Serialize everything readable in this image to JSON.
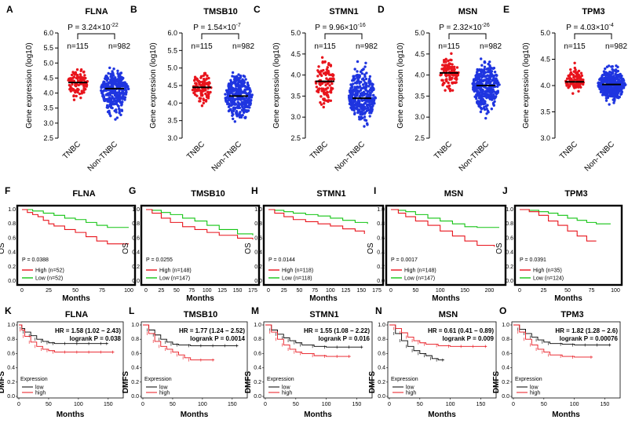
{
  "chart_data": [
    {
      "type": "scatter",
      "panel": "A",
      "title": "FLNA",
      "categories": [
        "TNBC",
        "Non-TNBC"
      ],
      "n_labels": [
        "n=115",
        "n=982"
      ],
      "p_text": "P = 3.24×10",
      "p_exp": "-22",
      "ylabel": "Gene expression (log10)",
      "ylim": [
        2.5,
        6.0
      ],
      "yticks": [
        "2.5",
        "3.0",
        "3.5",
        "4.0",
        "4.5",
        "5.0",
        "5.5",
        "6.0"
      ],
      "group_means": [
        4.35,
        4.15
      ],
      "group_ranges": [
        [
          3.6,
          5.0
        ],
        [
          3.0,
          4.9
        ]
      ],
      "colors": [
        "#e8141c",
        "#1f35e0"
      ]
    },
    {
      "type": "scatter",
      "panel": "B",
      "title": "TMSB10",
      "categories": [
        "TNBC",
        "Non-TNBC"
      ],
      "n_labels": [
        "n=115",
        "n=982"
      ],
      "p_text": "P = 1.54×10",
      "p_exp": "-7",
      "ylabel": "Gene expression (log10)",
      "ylim": [
        3.0,
        6.0
      ],
      "yticks": [
        "3.0",
        "3.5",
        "4.0",
        "4.5",
        "5.0",
        "5.5",
        "6.0"
      ],
      "group_means": [
        4.45,
        4.2
      ],
      "group_ranges": [
        [
          3.8,
          5.05
        ],
        [
          3.2,
          5.0
        ]
      ],
      "colors": [
        "#e8141c",
        "#1f35e0"
      ]
    },
    {
      "type": "scatter",
      "panel": "C",
      "title": "STMN1",
      "categories": [
        "TNBC",
        "Non-TNBC"
      ],
      "n_labels": [
        "n=115",
        "n=982"
      ],
      "p_text": "P = 9.96×10",
      "p_exp": "-16",
      "ylabel": "Gene expression (log10)",
      "ylim": [
        2.5,
        5.0
      ],
      "yticks": [
        "2.5",
        "3.0",
        "3.5",
        "4.0",
        "4.5",
        "5.0"
      ],
      "group_means": [
        3.85,
        3.45
      ],
      "group_ranges": [
        [
          3.1,
          4.55
        ],
        [
          2.7,
          4.5
        ]
      ],
      "colors": [
        "#e8141c",
        "#1f35e0"
      ]
    },
    {
      "type": "scatter",
      "panel": "D",
      "title": "MSN",
      "categories": [
        "TNBC",
        "Non-TNBC"
      ],
      "n_labels": [
        "n=115",
        "n=982"
      ],
      "p_text": "P = 2.32×10",
      "p_exp": "-26",
      "ylabel": "Gene expression (log10)",
      "ylim": [
        2.5,
        5.0
      ],
      "yticks": [
        "2.5",
        "3.0",
        "3.5",
        "4.0",
        "4.5",
        "5.0"
      ],
      "group_means": [
        4.05,
        3.75
      ],
      "group_ranges": [
        [
          3.5,
          4.55
        ],
        [
          2.9,
          4.5
        ]
      ],
      "colors": [
        "#e8141c",
        "#1f35e0"
      ]
    },
    {
      "type": "scatter",
      "panel": "E",
      "title": "TPM3",
      "categories": [
        "TNBC",
        "Non-TNBC"
      ],
      "n_labels": [
        "n=115",
        "n=982"
      ],
      "p_text": "P = 4.03×10",
      "p_exp": "-4",
      "ylabel": "Gene expression (log10)",
      "ylim": [
        3.0,
        5.0
      ],
      "yticks": [
        "3.0",
        "3.5",
        "4.0",
        "4.5",
        "5.0"
      ],
      "group_means": [
        4.07,
        4.02
      ],
      "group_ranges": [
        [
          3.8,
          4.45
        ],
        [
          3.6,
          4.45
        ]
      ],
      "colors": [
        "#e8141c",
        "#1f35e0"
      ]
    },
    {
      "type": "line",
      "panel": "F",
      "title": "FLNA",
      "ylabel": "OS",
      "xlabel": "Months",
      "xlim": [
        0,
        100
      ],
      "xticks": [
        "0",
        "25",
        "50",
        "75",
        "100"
      ],
      "ylim": [
        0,
        1.0
      ],
      "yticks": [
        "0.0",
        "0.2",
        "0.4",
        "0.6",
        "0.8",
        "1.0"
      ],
      "p_label": "P = 0.0388",
      "series": [
        {
          "name": "High (n=52)",
          "color": "#e8141c",
          "x": [
            0,
            5,
            10,
            15,
            20,
            25,
            30,
            40,
            50,
            60,
            70,
            80,
            100
          ],
          "y": [
            1.0,
            0.96,
            0.93,
            0.9,
            0.85,
            0.8,
            0.77,
            0.72,
            0.68,
            0.62,
            0.56,
            0.52,
            0.52
          ]
        },
        {
          "name": "Low (n=52)",
          "color": "#13c413",
          "x": [
            0,
            10,
            20,
            30,
            40,
            50,
            60,
            70,
            80,
            100
          ],
          "y": [
            1.0,
            0.98,
            0.95,
            0.92,
            0.88,
            0.86,
            0.82,
            0.78,
            0.75,
            0.75
          ]
        }
      ]
    },
    {
      "type": "line",
      "panel": "G",
      "title": "TMSB10",
      "ylabel": "OS",
      "xlabel": "Months",
      "xlim": [
        0,
        175
      ],
      "xticks": [
        "0",
        "25",
        "50",
        "75",
        "100",
        "125",
        "150",
        "175"
      ],
      "ylim": [
        0,
        1.0
      ],
      "yticks": [
        "0.0",
        "0.2",
        "0.4",
        "0.6",
        "0.8",
        "1.0"
      ],
      "p_label": "P = 0.0255",
      "series": [
        {
          "name": "High (n=148)",
          "color": "#e8141c",
          "x": [
            0,
            10,
            25,
            40,
            60,
            80,
            100,
            120,
            150,
            175
          ],
          "y": [
            1.0,
            0.95,
            0.88,
            0.82,
            0.76,
            0.72,
            0.68,
            0.64,
            0.6,
            0.58
          ]
        },
        {
          "name": "Low (n=147)",
          "color": "#13c413",
          "x": [
            0,
            10,
            25,
            40,
            60,
            80,
            100,
            120,
            150,
            175
          ],
          "y": [
            1.0,
            0.99,
            0.96,
            0.93,
            0.88,
            0.84,
            0.78,
            0.72,
            0.66,
            0.64
          ]
        }
      ]
    },
    {
      "type": "line",
      "panel": "H",
      "title": "STMN1",
      "ylabel": "OS",
      "xlabel": "Months",
      "xlim": [
        0,
        175
      ],
      "xticks": [
        "0",
        "25",
        "50",
        "75",
        "100",
        "125",
        "150",
        "175"
      ],
      "ylim": [
        0,
        1.0
      ],
      "yticks": [
        "0.0",
        "0.2",
        "0.4",
        "0.6",
        "0.8",
        "1.0"
      ],
      "p_label": "P = 0.0144",
      "series": [
        {
          "name": "High (n=118)",
          "color": "#e8141c",
          "x": [
            0,
            10,
            25,
            40,
            60,
            80,
            100,
            120,
            140,
            155
          ],
          "y": [
            1.0,
            0.95,
            0.9,
            0.86,
            0.83,
            0.8,
            0.77,
            0.73,
            0.7,
            0.66
          ]
        },
        {
          "name": "Low (n=118)",
          "color": "#13c413",
          "x": [
            0,
            10,
            25,
            40,
            60,
            80,
            100,
            120,
            140,
            160
          ],
          "y": [
            1.0,
            0.99,
            0.97,
            0.95,
            0.93,
            0.91,
            0.88,
            0.85,
            0.82,
            0.8
          ]
        }
      ]
    },
    {
      "type": "line",
      "panel": "I",
      "title": "MSN",
      "ylabel": "OS",
      "xlabel": "Months",
      "xlim": [
        0,
        220
      ],
      "xticks": [
        "0",
        "50",
        "100",
        "150",
        "200"
      ],
      "ylim": [
        0,
        1.0
      ],
      "yticks": [
        "0.0",
        "0.2",
        "0.4",
        "0.6",
        "0.8",
        "1.0"
      ],
      "p_label": "P = 0.0017",
      "series": [
        {
          "name": "High (n=148)",
          "color": "#e8141c",
          "x": [
            0,
            15,
            30,
            50,
            75,
            100,
            125,
            150,
            175,
            210
          ],
          "y": [
            1.0,
            0.95,
            0.9,
            0.84,
            0.78,
            0.7,
            0.63,
            0.56,
            0.5,
            0.48
          ]
        },
        {
          "name": "Low (n=147)",
          "color": "#13c413",
          "x": [
            0,
            15,
            30,
            50,
            75,
            100,
            125,
            150,
            175,
            220
          ],
          "y": [
            1.0,
            0.99,
            0.97,
            0.93,
            0.88,
            0.84,
            0.8,
            0.76,
            0.75,
            0.75
          ]
        }
      ]
    },
    {
      "type": "line",
      "panel": "J",
      "title": "TPM3",
      "ylabel": "OS",
      "xlabel": "Months",
      "xlim": [
        0,
        100
      ],
      "xticks": [
        "0",
        "25",
        "50",
        "75",
        "100"
      ],
      "ylim": [
        0,
        1.0
      ],
      "yticks": [
        "0.0",
        "0.2",
        "0.4",
        "0.6",
        "0.8",
        "1.0"
      ],
      "p_label": "P = 0.0391",
      "series": [
        {
          "name": "High (n=35)",
          "color": "#e8141c",
          "x": [
            0,
            10,
            20,
            30,
            40,
            50,
            60,
            70,
            80
          ],
          "y": [
            1.0,
            0.97,
            0.92,
            0.84,
            0.78,
            0.7,
            0.63,
            0.56,
            0.56
          ]
        },
        {
          "name": "Low (n=124)",
          "color": "#13c413",
          "x": [
            0,
            10,
            20,
            30,
            40,
            50,
            60,
            70,
            80,
            95
          ],
          "y": [
            1.0,
            0.99,
            0.97,
            0.95,
            0.92,
            0.88,
            0.85,
            0.82,
            0.8,
            0.8
          ]
        }
      ]
    },
    {
      "type": "line",
      "panel": "K",
      "title": "FLNA",
      "ylabel": "DMFS",
      "xlabel": "Months",
      "xlim": [
        0,
        170
      ],
      "xticks": [
        "0",
        "50",
        "100",
        "150"
      ],
      "ylim": [
        0,
        1.0
      ],
      "yticks": [
        "0.0",
        "0.2",
        "0.4",
        "0.6",
        "0.8",
        "1.0"
      ],
      "hr_label": "HR = 1.58 (1.02 − 2.43)",
      "logrank_label": "logrank P = 0.038",
      "legend_title": "Expression",
      "series": [
        {
          "name": "low",
          "color": "#000000",
          "x": [
            0,
            5,
            10,
            20,
            30,
            40,
            50,
            60,
            80,
            100,
            120,
            140,
            150
          ],
          "y": [
            1.0,
            0.95,
            0.9,
            0.85,
            0.8,
            0.77,
            0.75,
            0.74,
            0.74,
            0.74,
            0.74,
            0.74,
            0.74
          ]
        },
        {
          "name": "high",
          "color": "#e8141c",
          "x": [
            0,
            5,
            10,
            20,
            30,
            40,
            50,
            60,
            80,
            100,
            120,
            140,
            160
          ],
          "y": [
            1.0,
            0.93,
            0.84,
            0.76,
            0.7,
            0.66,
            0.64,
            0.62,
            0.62,
            0.62,
            0.62,
            0.62,
            0.62
          ]
        }
      ]
    },
    {
      "type": "line",
      "panel": "L",
      "title": "TMSB10",
      "ylabel": "DMFS",
      "xlabel": "Months",
      "xlim": [
        0,
        170
      ],
      "xticks": [
        "0",
        "50",
        "100",
        "150"
      ],
      "ylim": [
        0,
        1.0
      ],
      "yticks": [
        "0.0",
        "0.2",
        "0.4",
        "0.6",
        "0.8",
        "1.0"
      ],
      "hr_label": "HR = 1.77 (1.24 − 2.52)",
      "logrank_label": "logrank P = 0.0014",
      "legend_title": "Expression",
      "series": [
        {
          "name": "low",
          "color": "#000000",
          "x": [
            0,
            10,
            20,
            30,
            40,
            50,
            60,
            80,
            100,
            120,
            140,
            160
          ],
          "y": [
            1.0,
            0.93,
            0.86,
            0.8,
            0.76,
            0.73,
            0.72,
            0.71,
            0.71,
            0.71,
            0.71,
            0.71
          ]
        },
        {
          "name": "high",
          "color": "#e8141c",
          "x": [
            0,
            10,
            20,
            30,
            40,
            50,
            60,
            70,
            80,
            100,
            120
          ],
          "y": [
            1.0,
            0.88,
            0.77,
            0.7,
            0.66,
            0.62,
            0.58,
            0.54,
            0.51,
            0.51,
            0.51
          ]
        }
      ]
    },
    {
      "type": "line",
      "panel": "M",
      "title": "STMN1",
      "ylabel": "DMFS",
      "xlabel": "Months",
      "xlim": [
        0,
        170
      ],
      "xticks": [
        "0",
        "50",
        "100",
        "150"
      ],
      "ylim": [
        0,
        1.0
      ],
      "yticks": [
        "0.0",
        "0.2",
        "0.4",
        "0.6",
        "0.8",
        "1.0"
      ],
      "hr_label": "HR = 1.55 (1.08 − 2.22)",
      "logrank_label": "logrank P = 0.016",
      "legend_title": "Expression",
      "series": [
        {
          "name": "low",
          "color": "#000000",
          "x": [
            0,
            10,
            20,
            30,
            40,
            50,
            60,
            80,
            100,
            120,
            140,
            160
          ],
          "y": [
            1.0,
            0.93,
            0.87,
            0.82,
            0.78,
            0.75,
            0.72,
            0.7,
            0.69,
            0.69,
            0.69,
            0.69
          ]
        },
        {
          "name": "high",
          "color": "#e8141c",
          "x": [
            0,
            10,
            20,
            30,
            40,
            50,
            60,
            80,
            100,
            120,
            140
          ],
          "y": [
            1.0,
            0.9,
            0.8,
            0.72,
            0.66,
            0.62,
            0.6,
            0.57,
            0.56,
            0.56,
            0.56
          ]
        }
      ]
    },
    {
      "type": "line",
      "panel": "N",
      "title": "MSN",
      "ylabel": "DMFS",
      "xlabel": "Months",
      "xlim": [
        0,
        170
      ],
      "xticks": [
        "0",
        "50",
        "100",
        "150"
      ],
      "ylim": [
        0,
        1.0
      ],
      "yticks": [
        "0.0",
        "0.2",
        "0.4",
        "0.6",
        "0.8",
        "1.0"
      ],
      "hr_label": "HR = 0.61 (0.41 − 0.89)",
      "logrank_label": "logrank P = 0.009",
      "legend_title": "Expression",
      "series": [
        {
          "name": "low",
          "color": "#000000",
          "x": [
            0,
            10,
            20,
            30,
            40,
            50,
            60,
            70,
            80,
            90
          ],
          "y": [
            1.0,
            0.88,
            0.78,
            0.7,
            0.64,
            0.6,
            0.57,
            0.53,
            0.51,
            0.51
          ]
        },
        {
          "name": "high",
          "color": "#e8141c",
          "x": [
            0,
            10,
            20,
            30,
            40,
            50,
            60,
            80,
            100,
            120,
            140,
            160
          ],
          "y": [
            1.0,
            0.95,
            0.89,
            0.83,
            0.78,
            0.75,
            0.73,
            0.71,
            0.7,
            0.7,
            0.7,
            0.7
          ]
        }
      ]
    },
    {
      "type": "line",
      "panel": "O",
      "title": "TPM3",
      "ylabel": "DMFS",
      "xlabel": "Months",
      "xlim": [
        0,
        170
      ],
      "xticks": [
        "0",
        "50",
        "100",
        "150"
      ],
      "ylim": [
        0,
        1.0
      ],
      "yticks": [
        "0.0",
        "0.2",
        "0.4",
        "0.6",
        "0.8",
        "1.0"
      ],
      "hr_label": "HR = 1.82 (1.28 − 2.6)",
      "logrank_label": "logrank P = 0.00076",
      "legend_title": "Expression",
      "series": [
        {
          "name": "low",
          "color": "#000000",
          "x": [
            0,
            10,
            20,
            30,
            40,
            50,
            60,
            80,
            100,
            120,
            140,
            160
          ],
          "y": [
            1.0,
            0.94,
            0.88,
            0.83,
            0.79,
            0.76,
            0.74,
            0.73,
            0.72,
            0.72,
            0.72,
            0.72
          ]
        },
        {
          "name": "high",
          "color": "#e8141c",
          "x": [
            0,
            10,
            20,
            30,
            40,
            50,
            60,
            80,
            100,
            130
          ],
          "y": [
            1.0,
            0.9,
            0.8,
            0.72,
            0.66,
            0.62,
            0.58,
            0.56,
            0.55,
            0.55
          ]
        }
      ]
    }
  ]
}
